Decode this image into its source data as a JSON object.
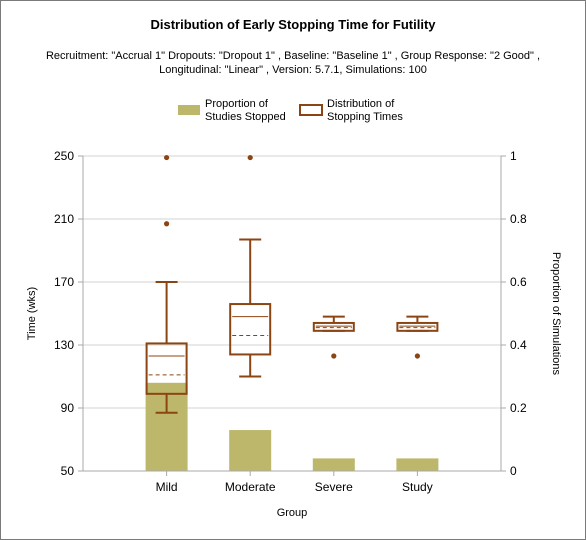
{
  "chart_data": {
    "type": "box",
    "title": "Distribution of Early Stopping Time for Futility",
    "subtitle_line1": "Recruitment: \"Accrual 1\" Dropouts: \"Dropout 1\" , Baseline: \"Baseline 1\" , Group Response: \"2 Good\" ,",
    "subtitle_line2": "Longitudinal: \"Linear\" , Version: 5.7.1, Simulations: 100",
    "xlabel": "Group",
    "ylabel_left": "Time (wks)",
    "ylabel_right": "Proportion of Simulations",
    "categories": [
      "Mild",
      "Moderate",
      "Severe",
      "Study"
    ],
    "ylim_left": [
      50,
      250
    ],
    "yticks_left": [
      50,
      90,
      130,
      170,
      210,
      250
    ],
    "ylim_right": [
      0,
      1
    ],
    "yticks_right": [
      0,
      0.2,
      0.4,
      0.6,
      0.8,
      1
    ],
    "grid": true,
    "legend_position": "top-center",
    "legend": [
      {
        "label_line1": "Proportion of",
        "label_line2": "Studies Stopped",
        "kind": "bar"
      },
      {
        "label_line1": "Distribution of",
        "label_line2": "Stopping Times",
        "kind": "box"
      }
    ],
    "proportion_stopped": [
      0.28,
      0.13,
      0.04,
      0.04
    ],
    "boxes": [
      {
        "whisker_low": 87,
        "q1": 99,
        "median": 123,
        "mean": 111,
        "q3": 131,
        "whisker_high": 170,
        "outliers": [
          249,
          207
        ]
      },
      {
        "whisker_low": 110,
        "q1": 124,
        "median": 148,
        "mean": 136,
        "q3": 156,
        "whisker_high": 197,
        "outliers": [
          249
        ]
      },
      {
        "whisker_low": 139,
        "q1": 139,
        "median": 142,
        "mean": 141,
        "q3": 144,
        "whisker_high": 148,
        "outliers": [
          123
        ]
      },
      {
        "whisker_low": 139,
        "q1": 139,
        "median": 142,
        "mean": 141,
        "q3": 144,
        "whisker_high": 148,
        "outliers": [
          123
        ]
      }
    ],
    "colors": {
      "bar": "#bdb76b",
      "box": "#8b4513",
      "grid": "#d3d3d3",
      "axis": "#a9a9a9"
    }
  }
}
